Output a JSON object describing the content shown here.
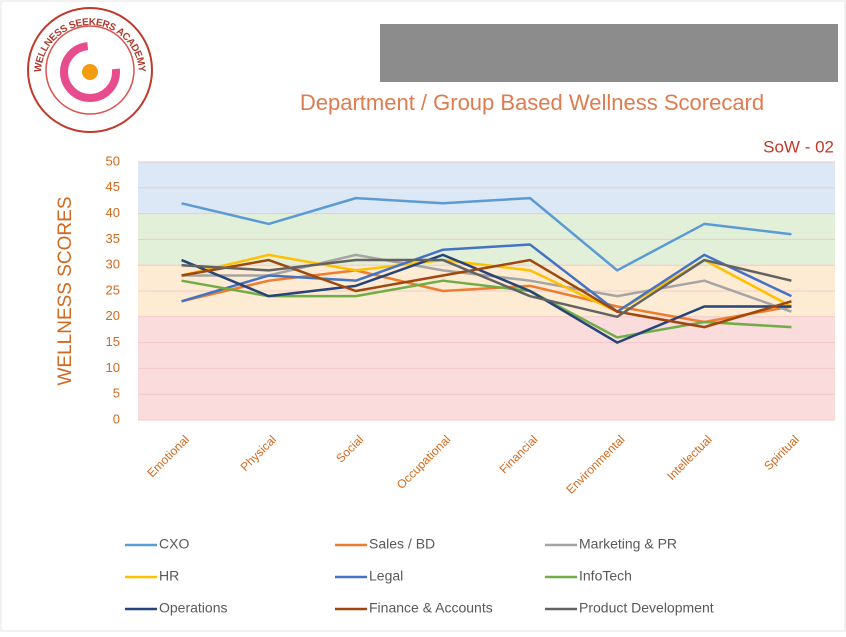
{
  "logo": {
    "text": "WELLNESS SEEKERS ACADEMY"
  },
  "chart_data": {
    "type": "line",
    "title": "Department / Group Based Wellness Scorecard",
    "annotation": "SoW - 02",
    "y_label": "WELLNESS SCORES",
    "categories": [
      "Emotional",
      "Physical",
      "Social",
      "Occupational",
      "Financial",
      "Environmental",
      "Intellectual",
      "Spiritual"
    ],
    "ylim": [
      0,
      50
    ],
    "yticks": [
      0,
      5,
      10,
      15,
      20,
      25,
      30,
      35,
      40,
      45,
      50
    ],
    "grid": true,
    "bands": [
      {
        "from": 0,
        "to": 20,
        "color": "#fadcdc"
      },
      {
        "from": 20,
        "to": 30,
        "color": "#fdebd3"
      },
      {
        "from": 30,
        "to": 40,
        "color": "#e3f0d9"
      },
      {
        "from": 40,
        "to": 50,
        "color": "#dce8f5"
      }
    ],
    "legend": "bottom",
    "series": [
      {
        "name": "CXO",
        "color": "#5b9bd5",
        "values": [
          42,
          38,
          43,
          42,
          43,
          29,
          38,
          36
        ]
      },
      {
        "name": "Sales / BD",
        "color": "#ed7d31",
        "values": [
          23,
          27,
          29,
          25,
          26,
          22,
          19,
          22
        ]
      },
      {
        "name": "Marketing & PR",
        "color": "#a5a5a5",
        "values": [
          28,
          28,
          32,
          29,
          27,
          24,
          27,
          21
        ]
      },
      {
        "name": "HR",
        "color": "#ffc000",
        "values": [
          28,
          32,
          29,
          31,
          29,
          21,
          31,
          22
        ]
      },
      {
        "name": "Legal",
        "color": "#4472c4",
        "values": [
          23,
          28,
          27,
          33,
          34,
          21,
          32,
          24
        ]
      },
      {
        "name": "InfoTech",
        "color": "#70ad47",
        "values": [
          27,
          24,
          24,
          27,
          25,
          16,
          19,
          18
        ]
      },
      {
        "name": "Operations",
        "color": "#264478",
        "values": [
          31,
          24,
          26,
          32,
          25,
          15,
          22,
          22
        ]
      },
      {
        "name": "Finance & Accounts",
        "color": "#9e480e",
        "values": [
          28,
          31,
          25,
          28,
          31,
          21,
          18,
          23
        ]
      },
      {
        "name": "Product Development",
        "color": "#636363",
        "values": [
          30,
          29,
          31,
          31,
          24,
          20,
          31,
          27
        ]
      }
    ]
  }
}
